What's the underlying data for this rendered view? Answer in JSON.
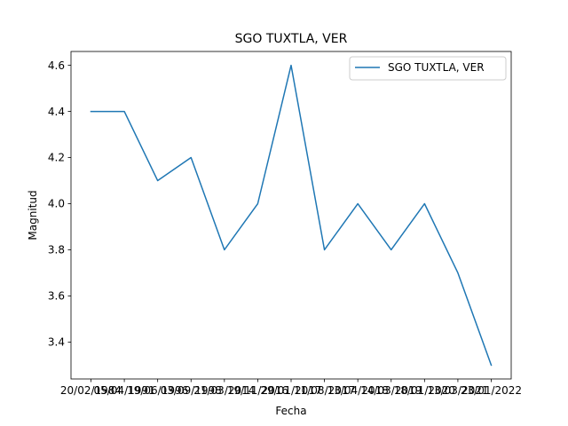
{
  "chart_data": {
    "type": "line",
    "title": "SGO TUXTLA, VER",
    "xlabel": "Fecha",
    "ylabel": "Magnitud",
    "categories": [
      "20/02/1984",
      "05/04/1991",
      "19/06/1996",
      "03/09/1998",
      "21/03/2014",
      "19/11/2016",
      "29/01/2017",
      "11/08/2017",
      "13/04/2018",
      "14/03/2019",
      "18/01/2020",
      "13/03/2021",
      "23/01/2022"
    ],
    "series": [
      {
        "name": "SGO TUXTLA, VER",
        "color": "#1f77b4",
        "values": [
          4.4,
          4.4,
          4.1,
          4.2,
          3.8,
          4.0,
          4.6,
          3.8,
          4.0,
          3.8,
          4.0,
          3.7,
          3.3
        ]
      }
    ],
    "ylim": [
      3.24,
      4.66
    ],
    "yticks": [
      3.4,
      3.6,
      3.8,
      4.0,
      4.2,
      4.4,
      4.6
    ],
    "ytick_labels": [
      "3.4",
      "3.6",
      "3.8",
      "4.0",
      "4.2",
      "4.4",
      "4.6"
    ],
    "grid": false,
    "legend_position": "upper right"
  }
}
